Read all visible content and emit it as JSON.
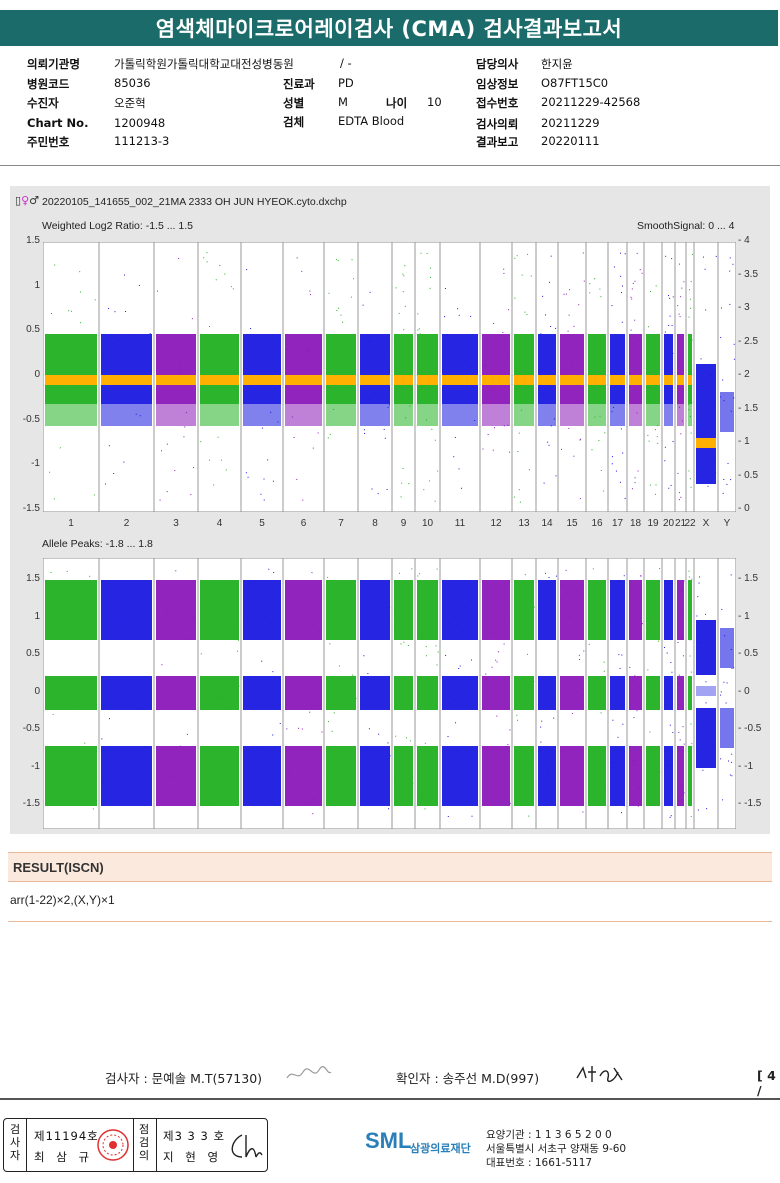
{
  "header": {
    "title": "염색체마이크로어레이검사 (CMA) 검사결과보고서"
  },
  "patient_info": [
    {
      "label": "의뢰기관명",
      "value": "가톨릭학원가톨릭대학교대전성병동원"
    },
    {
      "label": "병원코드",
      "value": "85036"
    },
    {
      "label": "수진자",
      "value": "오준혁"
    },
    {
      "label": "Chart No.",
      "value": "1200948"
    },
    {
      "label": "주민번호",
      "value": "111213-3"
    },
    {
      "label": "",
      "value": "/ -"
    },
    {
      "label": "진료과",
      "value": "PD"
    },
    {
      "label": "성별",
      "value": "M"
    },
    {
      "label": "나이",
      "value": "10"
    },
    {
      "label": "검체",
      "value": "EDTA Blood"
    },
    {
      "label": "담당의사",
      "value": "한지윤"
    },
    {
      "label": "임상정보",
      "value": "O87FT15C0"
    },
    {
      "label": "접수번호",
      "value": "20211229-42568"
    },
    {
      "label": "검사의뢰",
      "value": "20211229"
    },
    {
      "label": "결과보고",
      "value": "20220111"
    }
  ],
  "plot": {
    "file_name": "20220105_141655_002_21MA 2333 OH JUN HYEOK.cyto.dxchp",
    "icons": [
      "file-icon",
      "female-symbol-icon",
      "male-symbol-icon"
    ],
    "top_title": "Weighted Log2 Ratio: -1.5 ... 1.5",
    "top_right_title": "SmoothSignal: 0 ... 4",
    "bottom_title": "Allele Peaks: -1.8 ... 1.8",
    "top_left_ticks": [
      "1.5",
      "1",
      "0.5",
      "0",
      "-0.5",
      "-1",
      "-1.5"
    ],
    "top_right_ticks": [
      "4",
      "3.5",
      "3",
      "2.5",
      "2",
      "1.5",
      "1",
      "0.5",
      "0"
    ],
    "bottom_left_ticks": [
      "1.5",
      "1",
      "0.5",
      "0",
      "-0.5",
      "-1",
      "-1.5"
    ],
    "bottom_right_ticks": [
      "1.5",
      "1",
      "0.5",
      "0",
      "-0.5",
      "-1",
      "-1.5"
    ],
    "chromosome_labels": [
      "1",
      "2",
      "3",
      "4",
      "5",
      "6",
      "7",
      "8",
      "9",
      "10",
      "11",
      "12",
      "13",
      "14",
      "15",
      "16",
      "17",
      "18",
      "19",
      "20",
      "21",
      "22",
      "X",
      "Y"
    ],
    "colors": {
      "green": "#22b022",
      "blue": "#1a1ae0",
      "purple": "#8a18b8",
      "orange": "#ffb000",
      "panel_bg": "#e6e6e6"
    }
  },
  "result": {
    "heading": "RESULT(ISCN)",
    "text": "arr(1-22)×2,(X,Y)×1"
  },
  "signatures": {
    "tester": "검사자 : 문예솔 M.T(57130)",
    "confirmer": "확인자 : 송주선 M.D(997)",
    "page": "[ 4 /"
  },
  "footer": {
    "cert_col1": "검사자",
    "cert_line1": "제11194호",
    "cert_line2": "최 삼 규",
    "cert_col2": "점검의",
    "cert_line3": "제3 3 3 호",
    "cert_line4": "지 현 영",
    "logo": "SML",
    "org": "삼광의료재단",
    "code": "요양기관 : 1 1 3 6 5 2 0 0",
    "address": "서울특별시 서초구 양재동 9-60",
    "phone": "대표번호 : 1661-5117"
  }
}
